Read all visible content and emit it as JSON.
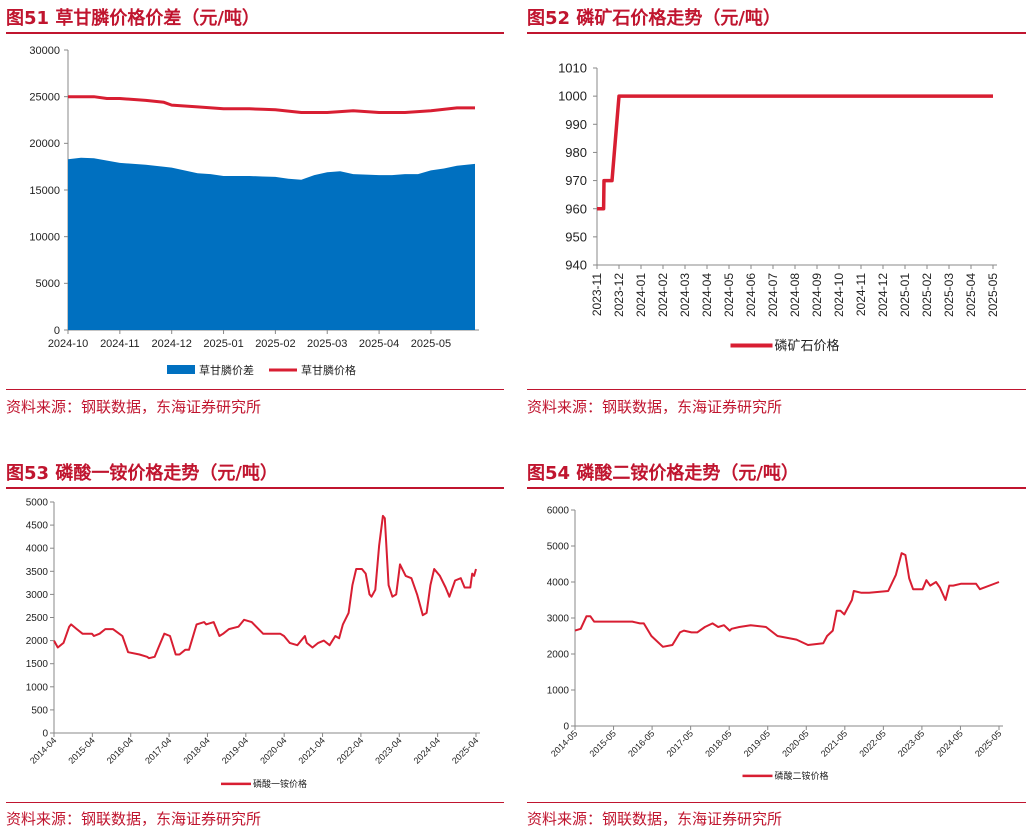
{
  "colors": {
    "accent": "#c0152f",
    "line": "#d81e32",
    "area": "#0070c0",
    "axis": "#888888"
  },
  "charts": [
    {
      "title": "图51  草甘膦价格价差（元/吨）",
      "source": "资料来源：钢联数据，东海证券研究所",
      "legend": [
        "草甘膦价差",
        "草甘膦价格"
      ]
    },
    {
      "title": "图52  磷矿石价格走势（元/吨）",
      "source": "资料来源：钢联数据，东海证券研究所",
      "legend": [
        "磷矿石价格"
      ]
    },
    {
      "title": "图53  磷酸一铵价格走势（元/吨）",
      "source": "资料来源：钢联数据，东海证券研究所",
      "legend": [
        "磷酸一铵价格"
      ]
    },
    {
      "title": "图54  磷酸二铵价格走势（元/吨）",
      "source": "资料来源：钢联数据，东海证券研究所",
      "legend": [
        "磷酸二铵价格"
      ]
    }
  ],
  "chart_data": [
    {
      "type": "area",
      "title": "草甘膦价格价差（元/吨）",
      "ylim": [
        0,
        30000
      ],
      "yticks": [
        0,
        5000,
        10000,
        15000,
        20000,
        25000,
        30000
      ],
      "xlabels": [
        "2024-10",
        "2024-11",
        "2024-12",
        "2025-01",
        "2025-02",
        "2025-03",
        "2025-04",
        "2025-05"
      ],
      "xrange": [
        0,
        7.85
      ],
      "series": [
        {
          "name": "草甘膦价差",
          "kind": "area",
          "x": [
            0,
            0.25,
            0.5,
            1,
            1.5,
            1.85,
            2,
            2.5,
            2.75,
            3,
            3.5,
            3.75,
            4,
            4.25,
            4.5,
            4.75,
            5,
            5.25,
            5.5,
            6,
            6.25,
            6.5,
            6.75,
            7,
            7.25,
            7.5,
            7.85
          ],
          "values": [
            18300,
            18450,
            18400,
            17900,
            17700,
            17500,
            17400,
            16800,
            16700,
            16500,
            16500,
            16450,
            16400,
            16200,
            16100,
            16600,
            16900,
            17000,
            16700,
            16600,
            16600,
            16700,
            16700,
            17100,
            17300,
            17600,
            17800
          ]
        },
        {
          "name": "草甘膦价格",
          "kind": "line",
          "x": [
            0,
            0.5,
            0.75,
            1,
            1.5,
            1.85,
            2,
            2.5,
            3,
            3.5,
            3.75,
            4,
            4.5,
            5,
            5.5,
            6,
            6.5,
            7,
            7.5,
            7.85
          ],
          "values": [
            25000,
            25000,
            24800,
            24800,
            24600,
            24400,
            24100,
            23900,
            23700,
            23700,
            23650,
            23600,
            23300,
            23300,
            23500,
            23300,
            23300,
            23500,
            23800,
            23800
          ]
        }
      ]
    },
    {
      "type": "line",
      "title": "磷矿石价格走势（元/吨）",
      "ylim": [
        940,
        1010
      ],
      "yticks": [
        940,
        950,
        960,
        970,
        980,
        990,
        1000,
        1010
      ],
      "xlabels": [
        "2023-11",
        "2023-12",
        "2024-01",
        "2024-02",
        "2024-03",
        "2024-04",
        "2024-05",
        "2024-06",
        "2024-07",
        "2024-08",
        "2024-09",
        "2024-10",
        "2024-11",
        "2024-12",
        "2025-01",
        "2025-02",
        "2025-03",
        "2025-04",
        "2025-05"
      ],
      "xrange": [
        0,
        18
      ],
      "series": [
        {
          "name": "磷矿石价格",
          "x": [
            0,
            0.3,
            0.32,
            0.65,
            0.68,
            1.0,
            18
          ],
          "values": [
            960,
            960,
            970,
            970,
            970,
            1000,
            1000
          ]
        }
      ]
    },
    {
      "type": "line",
      "title": "磷酸一铵价格走势（元/吨）",
      "ylim": [
        0,
        5000
      ],
      "yticks": [
        0,
        500,
        1000,
        1500,
        2000,
        2500,
        3000,
        3500,
        4000,
        4500,
        5000
      ],
      "xlabels": [
        "2014-04",
        "2015-04",
        "2016-04",
        "2017-04",
        "2018-04",
        "2019-04",
        "2020-04",
        "2021-04",
        "2022-04",
        "2023-04",
        "2024-04",
        "2025-04"
      ],
      "xrange": [
        0,
        11.1
      ],
      "series": [
        {
          "name": "磷酸一铵价格",
          "x": [
            0,
            0.1,
            0.25,
            0.4,
            0.45,
            0.6,
            0.75,
            1,
            1.05,
            1.2,
            1.35,
            1.55,
            1.8,
            1.95,
            2.25,
            2.45,
            2.5,
            2.65,
            2.75,
            2.9,
            3.05,
            3.2,
            3.3,
            3.45,
            3.55,
            3.75,
            3.95,
            4,
            4.2,
            4.35,
            4.45,
            4.6,
            4.85,
            5,
            5.2,
            5.5,
            5.8,
            5.95,
            6.05,
            6.2,
            6.4,
            6.6,
            6.65,
            6.8,
            6.95,
            7.1,
            7.25,
            7.4,
            7.5,
            7.6,
            7.75,
            7.85,
            7.95,
            8.1,
            8.2,
            8.3,
            8.35,
            8.45,
            8.55,
            8.65,
            8.7,
            8.8,
            8.9,
            9.0,
            9.1,
            9.25,
            9.4,
            9.55,
            9.7,
            9.8,
            9.9,
            10.0,
            10.15,
            10.3,
            10.4,
            10.55,
            10.7,
            10.8,
            10.95,
            11.0,
            11.05,
            11.1
          ],
          "values": [
            2000,
            1850,
            1950,
            2300,
            2350,
            2250,
            2150,
            2150,
            2100,
            2150,
            2250,
            2250,
            2100,
            1750,
            1700,
            1650,
            1620,
            1650,
            1850,
            2150,
            2100,
            1700,
            1700,
            1800,
            1800,
            2350,
            2400,
            2350,
            2400,
            2100,
            2150,
            2250,
            2300,
            2450,
            2400,
            2150,
            2150,
            2150,
            2100,
            1950,
            1900,
            2100,
            1950,
            1850,
            1950,
            2000,
            1900,
            2100,
            2050,
            2350,
            2600,
            3200,
            3550,
            3550,
            3450,
            3000,
            2950,
            3100,
            4050,
            4700,
            4650,
            3200,
            2950,
            3000,
            3650,
            3400,
            3350,
            3000,
            2550,
            2600,
            3200,
            3550,
            3400,
            3150,
            2950,
            3300,
            3350,
            3150,
            3150,
            3450,
            3400,
            3550
          ]
        }
      ]
    },
    {
      "type": "line",
      "title": "磷酸二铵价格走势（元/吨）",
      "ylim": [
        0,
        6000
      ],
      "yticks": [
        0,
        1000,
        2000,
        3000,
        4000,
        5000,
        6000
      ],
      "xlabels": [
        "2014-05",
        "2015-05",
        "2016-05",
        "2017-05",
        "2018-05",
        "2019-05",
        "2020-05",
        "2021-05",
        "2022-05",
        "2023-05",
        "2024-05",
        "2025-05"
      ],
      "xrange": [
        0,
        11.1
      ],
      "series": [
        {
          "name": "磷酸二铵价格",
          "x": [
            0,
            0.15,
            0.3,
            0.4,
            0.5,
            1.5,
            1.7,
            1.8,
            2.0,
            2.3,
            2.55,
            2.75,
            2.85,
            3.05,
            3.2,
            3.4,
            3.6,
            3.75,
            3.9,
            4.05,
            4.1,
            4.3,
            4.6,
            5.0,
            5.3,
            5.8,
            6.1,
            6.5,
            6.6,
            6.75,
            6.85,
            6.95,
            7.05,
            7.25,
            7.3,
            7.5,
            7.7,
            8.2,
            8.4,
            8.55,
            8.65,
            8.75,
            8.85,
            9.1,
            9.2,
            9.3,
            9.45,
            9.55,
            9.7,
            9.8,
            9.9,
            10.1,
            10.5,
            10.6,
            11.1,
            11.1
          ],
          "values": [
            2650,
            2700,
            3050,
            3050,
            2900,
            2900,
            2850,
            2850,
            2500,
            2200,
            2250,
            2600,
            2650,
            2600,
            2600,
            2750,
            2850,
            2750,
            2800,
            2650,
            2700,
            2750,
            2800,
            2750,
            2500,
            2400,
            2250,
            2300,
            2500,
            2650,
            3200,
            3200,
            3100,
            3500,
            3750,
            3700,
            3700,
            3750,
            4200,
            4800,
            4750,
            4100,
            3800,
            3800,
            4050,
            3900,
            4000,
            3850,
            3500,
            3900,
            3900,
            3950,
            3950,
            3800,
            4000,
            4000
          ]
        }
      ]
    }
  ]
}
